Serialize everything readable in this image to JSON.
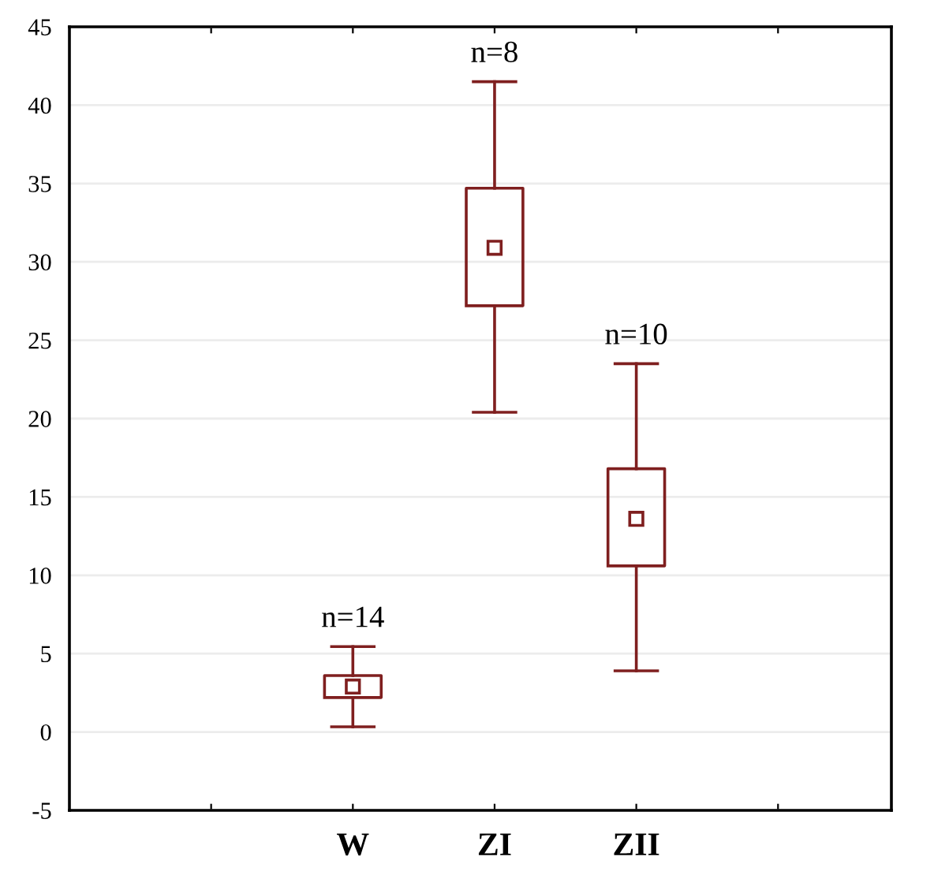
{
  "chart_data": {
    "type": "box",
    "categories": [
      null,
      "W",
      "ZI",
      "ZII",
      null
    ],
    "boxes": [
      null,
      {
        "low": 0.33,
        "q1": 2.2,
        "median": 2.9,
        "q3": 3.6,
        "high": 5.45
      },
      {
        "low": 20.4,
        "q1": 27.2,
        "median": 30.9,
        "q3": 34.7,
        "high": 41.5
      },
      {
        "low": 3.9,
        "q1": 10.6,
        "median": 13.6,
        "q3": 16.8,
        "high": 23.5
      },
      null
    ],
    "color": "#7f1f1f",
    "marker": "square",
    "ylim": [
      -5,
      45
    ],
    "yticks": [
      -5,
      0,
      5,
      10,
      15,
      20,
      25,
      30,
      35,
      40,
      45
    ],
    "grid": "y",
    "annotations": [
      "n=14",
      "n=8",
      "n=10"
    ]
  }
}
